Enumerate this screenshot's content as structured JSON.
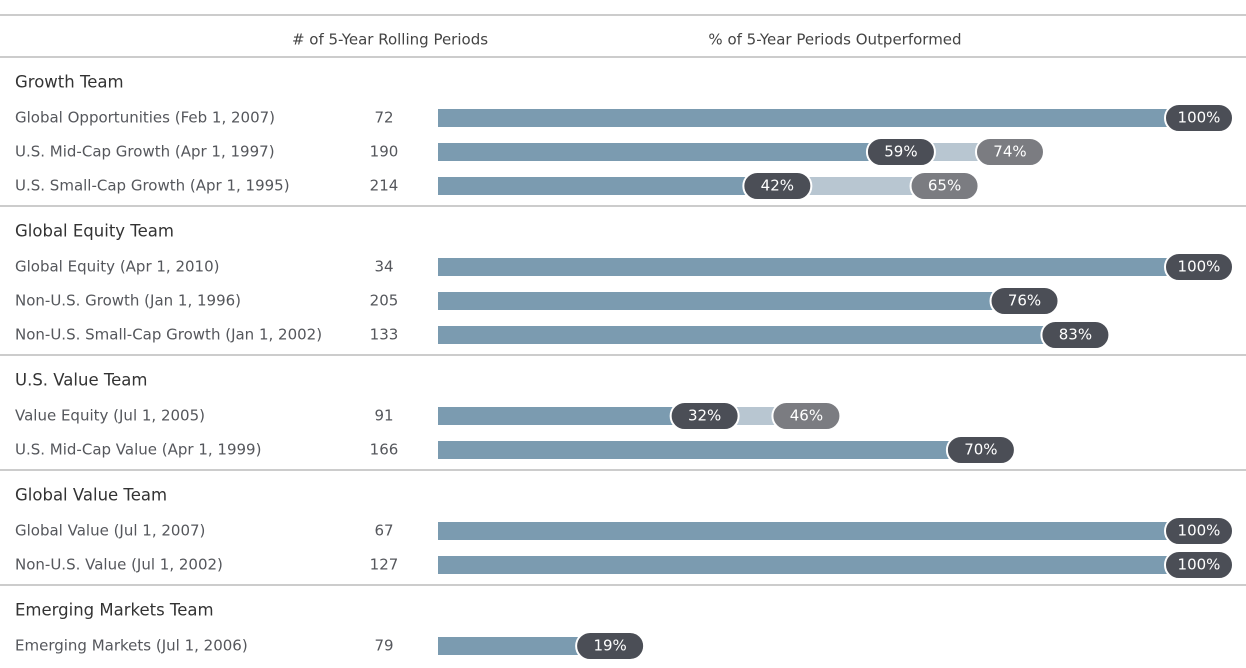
{
  "chart_data": {
    "type": "bar",
    "column_headers": [
      "# of 5-Year Rolling Periods",
      "% of 5-Year Periods Outperformed"
    ],
    "xlim": [
      0,
      100
    ],
    "color": "#7b9bb0",
    "secondary_color": "#b8c6d1",
    "groups": [
      {
        "name": "Growth Team",
        "rows": [
          {
            "label": "Global Opportunities (Feb 1, 2007)",
            "periods": 72,
            "values": [
              100
            ],
            "value_labels": [
              "100%"
            ]
          },
          {
            "label": "U.S. Mid-Cap Growth (Apr 1, 1997)",
            "periods": 190,
            "values": [
              59,
              74
            ],
            "value_labels": [
              "59%",
              "74%"
            ]
          },
          {
            "label": "U.S. Small-Cap Growth (Apr 1, 1995)",
            "periods": 214,
            "values": [
              42,
              65
            ],
            "value_labels": [
              "42%",
              "65%"
            ]
          }
        ]
      },
      {
        "name": "Global Equity Team",
        "rows": [
          {
            "label": "Global Equity (Apr 1, 2010)",
            "periods": 34,
            "values": [
              100
            ],
            "value_labels": [
              "100%"
            ]
          },
          {
            "label": "Non-U.S. Growth (Jan 1, 1996)",
            "periods": 205,
            "values": [
              76
            ],
            "value_labels": [
              "76%"
            ]
          },
          {
            "label": "Non-U.S. Small-Cap Growth (Jan 1, 2002)",
            "periods": 133,
            "values": [
              83
            ],
            "value_labels": [
              "83%"
            ]
          }
        ]
      },
      {
        "name": "U.S. Value Team",
        "rows": [
          {
            "label": "Value Equity (Jul 1, 2005)",
            "periods": 91,
            "values": [
              32,
              46
            ],
            "value_labels": [
              "32%",
              "46%"
            ]
          },
          {
            "label": "U.S. Mid-Cap Value (Apr 1, 1999)",
            "periods": 166,
            "values": [
              70
            ],
            "value_labels": [
              "70%"
            ]
          }
        ]
      },
      {
        "name": "Global Value Team",
        "rows": [
          {
            "label": "Global Value (Jul 1, 2007)",
            "periods": 67,
            "values": [
              100
            ],
            "value_labels": [
              "100%"
            ]
          },
          {
            "label": "Non-U.S. Value (Jul 1, 2002)",
            "periods": 127,
            "values": [
              100
            ],
            "value_labels": [
              "100%"
            ]
          }
        ]
      },
      {
        "name": "Emerging Markets Team",
        "rows": [
          {
            "label": "Emerging Markets (Jul 1, 2006)",
            "periods": 79,
            "values": [
              19
            ],
            "value_labels": [
              "19%"
            ]
          }
        ]
      }
    ]
  }
}
